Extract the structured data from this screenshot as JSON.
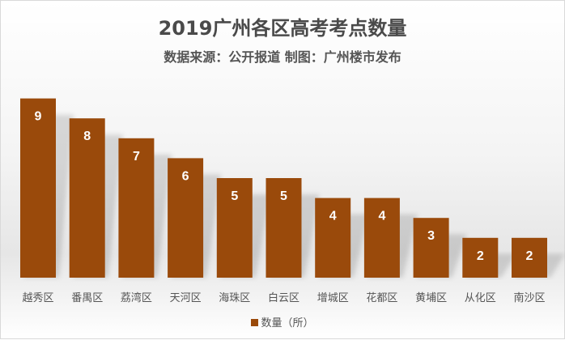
{
  "chart_data": {
    "type": "bar",
    "title": "2019广州各区高考考点数量",
    "subtitle": "数据来源：公开报道  制图：广州楼市发布",
    "categories": [
      "越秀区",
      "番禺区",
      "荔湾区",
      "天河区",
      "海珠区",
      "白云区",
      "增城区",
      "花都区",
      "黄埔区",
      "从化区",
      "南沙区"
    ],
    "series": [
      {
        "name": "数量（所）",
        "values": [
          9,
          8,
          7,
          6,
          5,
          5,
          4,
          4,
          3,
          2,
          2
        ]
      }
    ],
    "xlabel": "",
    "ylabel": "",
    "ylim": [
      0,
      9
    ],
    "grid": false,
    "legend": "bottom",
    "color": "#9a4a0b"
  }
}
